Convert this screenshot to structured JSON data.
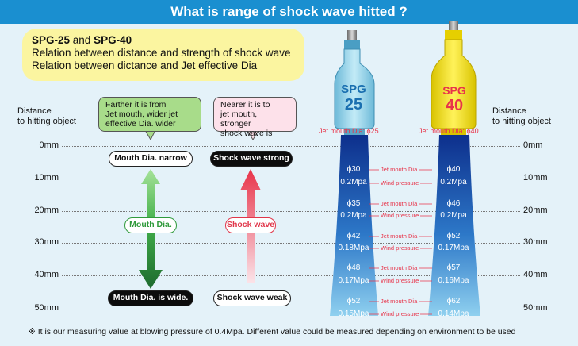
{
  "title": "What is range of shock wave hitted ?",
  "intro": {
    "model_a": "SPG-25",
    "and": " and ",
    "model_b": "SPG-40",
    "line1": "Relation between distance and strength of shock wave",
    "line2": "Relation between dictance and Jet effective Dia"
  },
  "distance_label_left": [
    "Distance",
    "to hitting object"
  ],
  "distance_label_right": [
    "Distance",
    "to hitting object"
  ],
  "scale": [
    "0mm",
    "10mm",
    "20mm",
    "30mm",
    "40mm",
    "50mm"
  ],
  "left_panel": {
    "balloon_green": [
      "Farther it is from",
      "Jet mouth, wider jet",
      "effective Dia. wider"
    ],
    "balloon_pink": [
      "Nearer it is to",
      "jet mouth, stronger",
      "shock wave is"
    ],
    "mouth_narrow": "Mouth Dia. narrow",
    "mouth_dia": "Mouth Dia.",
    "mouth_wide": "Mouth Dia. is wide.",
    "shock_strong": "Shock wave strong",
    "shock_wave": "Shock wave",
    "shock_weak": "Shock wave weak"
  },
  "nozzles": {
    "spg25": {
      "brand": "SPG",
      "num": "25",
      "jet_label": "Jet mouth Dia: ϕ25",
      "color": "#9fd9ee"
    },
    "spg40": {
      "brand": "SPG",
      "num": "40",
      "jet_label": "Jet mouth Dia: ϕ40",
      "color": "#f7e51a"
    }
  },
  "mid_labels": {
    "jet": "Jet mouth Dia",
    "wind": "Wind pressure"
  },
  "measurements": [
    {
      "d25": "ϕ30",
      "p25": "0.2Mpa",
      "d40": "ϕ40",
      "p40": "0.2Mpa"
    },
    {
      "d25": "ϕ35",
      "p25": "0.2Mpa",
      "d40": "ϕ46",
      "p40": "0.2Mpa"
    },
    {
      "d25": "ϕ42",
      "p25": "0.18Mpa",
      "d40": "ϕ52",
      "p40": "0.17Mpa"
    },
    {
      "d25": "ϕ48",
      "p25": "0.17Mpa",
      "d40": "ϕ57",
      "p40": "0.16Mpa"
    },
    {
      "d25": "ϕ52",
      "p25": "0.15Mpa",
      "d40": "ϕ62",
      "p40": "0.14Mpa"
    }
  ],
  "footnote": "※  It is our measuring value at blowing pressure of 0.4Mpa. Different value  could be measured depending on environment to be used"
}
